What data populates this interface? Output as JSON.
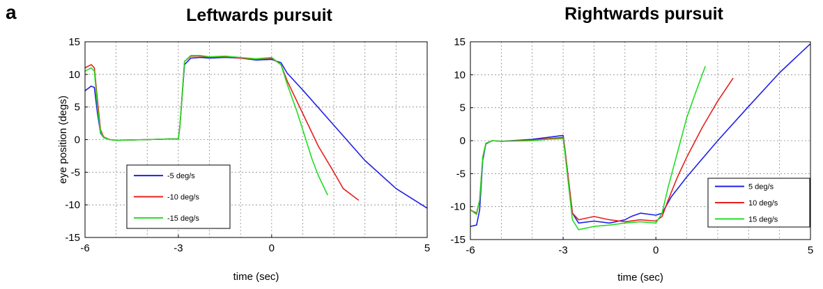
{
  "panel_label": "a",
  "chart_data": [
    {
      "type": "line",
      "title": "Leftwards pursuit",
      "xlabel": "time (sec)",
      "ylabel": "eye position (degs)",
      "xlim": [
        -6,
        5
      ],
      "ylim": [
        -15,
        15
      ],
      "xtick_labels": [
        "-6",
        "-3",
        "0",
        "5"
      ],
      "xticks": [
        -6,
        -3,
        0,
        5
      ],
      "ytick_labels": [
        "15",
        "10",
        "5",
        "0",
        "-5",
        "-10",
        "-15"
      ],
      "yticks": [
        15,
        10,
        5,
        0,
        -5,
        -10,
        -15
      ],
      "grid": true,
      "legend_position": "lower-left",
      "series": [
        {
          "name": "-5 deg/s",
          "color": "#1f1fe6",
          "x": [
            -6,
            -5.8,
            -5.7,
            -5.6,
            -5.5,
            -5.4,
            -5.2,
            -5.0,
            -4,
            -3.3,
            -3.0,
            -2.95,
            -2.8,
            -2.6,
            -2.3,
            -2.0,
            -1.5,
            -1.0,
            -0.5,
            0.0,
            0.3,
            0.5,
            1.0,
            2.0,
            3.0,
            4.0,
            5.0
          ],
          "values": [
            7.5,
            8.2,
            8.0,
            4.0,
            1.0,
            0.3,
            0.0,
            -0.1,
            0.0,
            0.1,
            0.1,
            2.0,
            11.5,
            12.5,
            12.6,
            12.5,
            12.6,
            12.5,
            12.2,
            12.3,
            11.8,
            10.2,
            7.6,
            2.2,
            -3.2,
            -7.5,
            -10.5
          ]
        },
        {
          "name": "-10 deg/s",
          "color": "#e61f1f",
          "x": [
            -6,
            -5.8,
            -5.7,
            -5.6,
            -5.5,
            -5.4,
            -5.2,
            -5.0,
            -4,
            -3.3,
            -3.0,
            -2.95,
            -2.8,
            -2.6,
            -2.3,
            -2.0,
            -1.5,
            -1.0,
            -0.5,
            0.0,
            0.3,
            0.5,
            1.0,
            1.5,
            2.0,
            2.3,
            2.8
          ],
          "values": [
            11.0,
            11.5,
            11.0,
            6.0,
            1.5,
            0.4,
            0.0,
            -0.1,
            0.0,
            0.1,
            0.1,
            2.0,
            12.0,
            12.8,
            12.8,
            12.6,
            12.7,
            12.5,
            12.3,
            12.5,
            11.5,
            9.0,
            4.0,
            -1.0,
            -5.0,
            -7.5,
            -9.3
          ]
        },
        {
          "name": "-15 deg/s",
          "color": "#22dd22",
          "x": [
            -6,
            -5.8,
            -5.7,
            -5.6,
            -5.5,
            -5.4,
            -5.2,
            -5.0,
            -4,
            -3.3,
            -3.0,
            -2.95,
            -2.8,
            -2.6,
            -2.3,
            -2.0,
            -1.5,
            -1.0,
            -0.5,
            0.0,
            0.3,
            0.5,
            0.8,
            1.0,
            1.3,
            1.5,
            1.8
          ],
          "values": [
            10.5,
            11.0,
            10.5,
            5.0,
            1.2,
            0.3,
            0.0,
            -0.1,
            0.0,
            0.1,
            0.1,
            2.0,
            12.0,
            12.9,
            12.9,
            12.7,
            12.8,
            12.6,
            12.4,
            12.6,
            11.5,
            8.5,
            4.5,
            1.5,
            -3.0,
            -5.5,
            -8.5
          ]
        }
      ]
    },
    {
      "type": "line",
      "title": "Rightwards pursuit",
      "xlabel": "time (sec)",
      "ylabel": "",
      "xlim": [
        -6,
        5
      ],
      "ylim": [
        -15,
        15
      ],
      "xtick_labels": [
        "-6",
        "-3",
        "0",
        "5"
      ],
      "xticks": [
        -6,
        -3,
        0,
        5
      ],
      "ytick_labels": [
        "15",
        "10",
        "5",
        "0",
        "-5",
        "-10",
        "-15"
      ],
      "yticks": [
        15,
        10,
        5,
        0,
        -5,
        -10,
        -15
      ],
      "grid": true,
      "legend_position": "lower-right",
      "series": [
        {
          "name": "5 deg/s",
          "color": "#1f1fe6",
          "x": [
            -6,
            -5.8,
            -5.7,
            -5.6,
            -5.5,
            -5.3,
            -5.0,
            -4.0,
            -3.5,
            -3.0,
            -2.95,
            -2.7,
            -2.5,
            -2.0,
            -1.5,
            -1.0,
            -0.8,
            -0.5,
            0.0,
            0.2,
            0.5,
            1.0,
            2.0,
            3.0,
            4.0,
            5.0
          ],
          "values": [
            -13.0,
            -12.8,
            -10.5,
            -3.0,
            -0.5,
            0.0,
            -0.1,
            0.2,
            0.5,
            0.8,
            -1.0,
            -11.0,
            -12.5,
            -12.2,
            -12.5,
            -12.0,
            -11.5,
            -11.0,
            -11.3,
            -11.0,
            -8.5,
            -5.5,
            0.0,
            5.2,
            10.3,
            14.7
          ]
        },
        {
          "name": "10 deg/s",
          "color": "#e61f1f",
          "x": [
            -6,
            -5.8,
            -5.7,
            -5.6,
            -5.5,
            -5.3,
            -5.0,
            -4.0,
            -3.5,
            -3.0,
            -2.95,
            -2.7,
            -2.5,
            -2.0,
            -1.5,
            -1.0,
            -0.5,
            0.0,
            0.2,
            0.4,
            0.7,
            1.0,
            1.5,
            2.0,
            2.5
          ],
          "values": [
            -10.5,
            -11.0,
            -9.0,
            -2.5,
            -0.4,
            0.0,
            -0.1,
            0.1,
            0.3,
            0.5,
            -1.0,
            -11.0,
            -12.0,
            -11.5,
            -12.0,
            -12.3,
            -12.0,
            -12.2,
            -11.5,
            -9.0,
            -5.5,
            -2.5,
            2.0,
            6.0,
            9.5
          ]
        },
        {
          "name": "15 deg/s",
          "color": "#22dd22",
          "x": [
            -6,
            -5.8,
            -5.7,
            -5.6,
            -5.5,
            -5.3,
            -5.0,
            -4.0,
            -3.5,
            -3.0,
            -2.95,
            -2.7,
            -2.5,
            -2.0,
            -1.5,
            -1.0,
            -0.5,
            0.0,
            0.2,
            0.4,
            0.6,
            0.8,
            1.0,
            1.3,
            1.6
          ],
          "values": [
            -10.5,
            -11.2,
            -9.0,
            -2.5,
            -0.4,
            0.0,
            -0.1,
            0.0,
            0.2,
            0.3,
            -1.5,
            -12.0,
            -13.5,
            -13.0,
            -12.8,
            -12.5,
            -12.3,
            -12.5,
            -11.0,
            -7.0,
            -3.5,
            0.0,
            3.5,
            7.5,
            11.3
          ]
        }
      ]
    }
  ]
}
